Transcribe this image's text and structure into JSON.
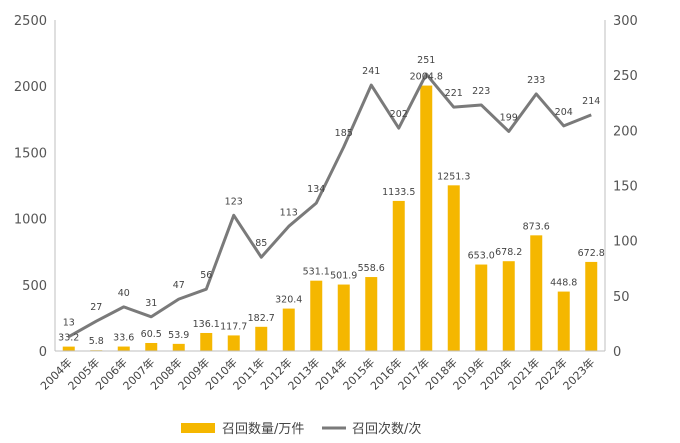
{
  "chart_data": {
    "type": "bar+line",
    "categories": [
      "2004年",
      "2005年",
      "2006年",
      "2007年",
      "2008年",
      "2009年",
      "2010年",
      "2011年",
      "2012年",
      "2013年",
      "2014年",
      "2015年",
      "2016年",
      "2017年",
      "2018年",
      "2019年",
      "2020年",
      "2021年",
      "2022年",
      "2023年"
    ],
    "series": [
      {
        "name": "召回数量/万件",
        "type": "bar",
        "axis": "left",
        "color": "#f5b700",
        "values": [
          33.2,
          5.8,
          33.6,
          60.5,
          53.9,
          136.1,
          117.7,
          182.7,
          320.4,
          531.1,
          501.9,
          558.6,
          1133.5,
          2004.8,
          1251.3,
          653.0,
          678.2,
          873.6,
          448.8,
          672.8
        ],
        "labels": [
          "33.2",
          "5.8",
          "33.6",
          "60.5",
          "53.9",
          "136.1",
          "117.7",
          "182.7",
          "320.4",
          "531.1",
          "501.9",
          "558.6",
          "1133.5",
          "2004.8",
          "1251.3",
          "653.0",
          "678.2",
          "873.6",
          "448.8",
          "672.8"
        ]
      },
      {
        "name": "召回次数/次",
        "type": "line",
        "axis": "right",
        "color": "#7a7a7a",
        "values": [
          13,
          27,
          40,
          31,
          47,
          56,
          123,
          85,
          113,
          134,
          185,
          241,
          202,
          251,
          221,
          223,
          199,
          233,
          204,
          214
        ]
      }
    ],
    "left_axis": {
      "ylim": [
        0,
        2500
      ],
      "ticks": [
        0,
        500,
        1000,
        1500,
        2000,
        2500
      ]
    },
    "right_axis": {
      "ylim": [
        0,
        300
      ],
      "ticks": [
        0,
        50,
        100,
        150,
        200,
        250,
        300
      ]
    },
    "legend": {
      "position": "bottom"
    },
    "grid": false
  }
}
